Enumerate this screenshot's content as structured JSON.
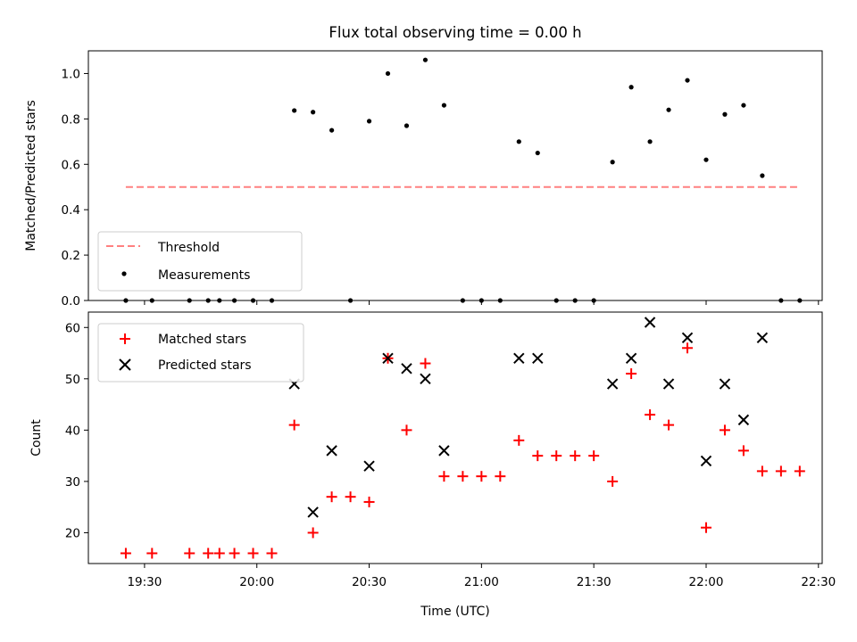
{
  "chart_data": [
    {
      "type": "scatter",
      "title": "Flux total observing time = 0.00 h",
      "xlabel": "",
      "ylabel": "Matched/Predicted stars",
      "ylim": [
        0,
        1.1
      ],
      "yticks": [
        "0.0",
        "0.2",
        "0.4",
        "0.6",
        "0.8",
        "1.0"
      ],
      "legend_position": "lower-left",
      "threshold": {
        "name": "Threshold",
        "value": 0.5,
        "x_range": [
          "19:25",
          "22:25"
        ],
        "color": "#ff8080"
      },
      "series": [
        {
          "name": "Measurements",
          "color": "#000000",
          "x": [
            "19:25",
            "19:32",
            "19:42",
            "19:47",
            "19:50",
            "19:54",
            "19:59",
            "20:04",
            "20:10",
            "20:15",
            "20:20",
            "20:25",
            "20:30",
            "20:35",
            "20:40",
            "20:45",
            "20:50",
            "20:55",
            "21:00",
            "21:05",
            "21:10",
            "21:15",
            "21:20",
            "21:25",
            "21:30",
            "21:35",
            "21:40",
            "21:45",
            "21:50",
            "21:55",
            "22:00",
            "22:05",
            "22:10",
            "22:15",
            "22:20",
            "22:25"
          ],
          "y": [
            0,
            0,
            0,
            0,
            0,
            0,
            0,
            0,
            0.837,
            0.83,
            0.75,
            0,
            0.79,
            1.0,
            0.77,
            1.06,
            0.86,
            0,
            0,
            0,
            0.7,
            0.65,
            0,
            0,
            0,
            0.61,
            0.94,
            0.7,
            0.84,
            0.97,
            0.62,
            0.82,
            0.86,
            0.55,
            0,
            0
          ]
        }
      ]
    },
    {
      "type": "scatter",
      "xlabel": "Time (UTC)",
      "ylabel": "Count",
      "ylim": [
        14,
        63
      ],
      "yticks": [
        "20",
        "30",
        "40",
        "50",
        "60"
      ],
      "xticks": [
        "19:30",
        "20:00",
        "20:30",
        "21:00",
        "21:30",
        "22:00",
        "22:30"
      ],
      "legend_position": "upper-left",
      "series": [
        {
          "name": "Matched stars",
          "color": "#ff0000",
          "marker": "plus",
          "x": [
            "19:25",
            "19:32",
            "19:42",
            "19:47",
            "19:50",
            "19:54",
            "19:59",
            "20:04",
            "20:10",
            "20:15",
            "20:20",
            "20:25",
            "20:30",
            "20:35",
            "20:40",
            "20:45",
            "20:50",
            "20:55",
            "21:00",
            "21:05",
            "21:10",
            "21:15",
            "21:20",
            "21:25",
            "21:30",
            "21:35",
            "21:40",
            "21:45",
            "21:50",
            "21:55",
            "22:00",
            "22:05",
            "22:10",
            "22:15",
            "22:20",
            "22:25"
          ],
          "y": [
            16,
            16,
            16,
            16,
            16,
            16,
            16,
            16,
            41,
            20,
            27,
            27,
            26,
            54,
            40,
            53,
            31,
            31,
            31,
            31,
            38,
            35,
            35,
            35,
            35,
            30,
            51,
            43,
            41,
            56,
            21,
            40,
            36,
            32,
            32,
            32
          ]
        },
        {
          "name": "Predicted stars",
          "color": "#000000",
          "marker": "x",
          "x": [
            "20:10",
            "20:15",
            "20:20",
            "20:30",
            "20:35",
            "20:40",
            "20:45",
            "20:50",
            "21:10",
            "21:15",
            "21:35",
            "21:40",
            "21:45",
            "21:50",
            "21:55",
            "22:00",
            "22:05",
            "22:10",
            "22:15"
          ],
          "y": [
            49,
            24,
            36,
            33,
            54,
            52,
            50,
            36,
            54,
            54,
            49,
            54,
            61,
            49,
            58,
            34,
            49,
            42,
            58
          ]
        }
      ]
    }
  ]
}
